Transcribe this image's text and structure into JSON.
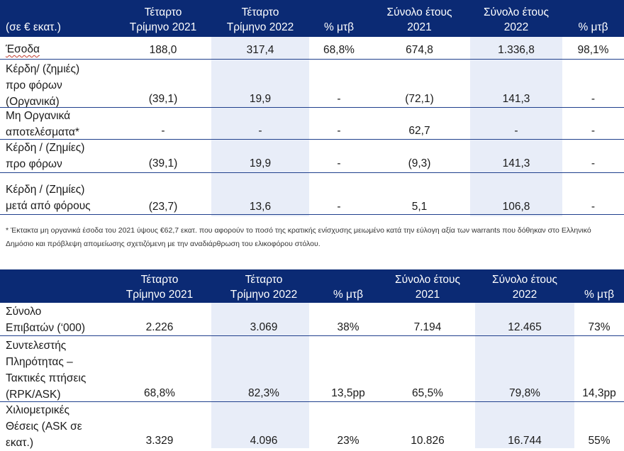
{
  "table1": {
    "headers": {
      "unit": "(σε € εκατ.)",
      "q4_2021": "Τέταρτο\nΤρίμηνο 2021",
      "q4_2022": "Τέταρτο\nΤρίμηνο 2022",
      "yoy": "% μτβ",
      "fy_2021": "Σύνολο έτους\n2021",
      "fy_2022": "Σύνολο έτους\n2022",
      "yoy2": "% μτβ"
    },
    "rows": [
      {
        "label": "Έσοδα",
        "q4_2021": "188,0",
        "q4_2022": "317,4",
        "yoy": "68,8%",
        "fy_2021": "674,8",
        "fy_2022": "1.336,8",
        "yoy2": "98,1%"
      },
      {
        "label": "Κέρδη/ (ζημιές)\nπρο φόρων\n(Οργανικά)",
        "q4_2021": "(39,1)",
        "q4_2022": "19,9",
        "yoy": "-",
        "fy_2021": "(72,1)",
        "fy_2022": "141,3",
        "yoy2": "-"
      },
      {
        "label": "Μη Οργανικά\nαποτελέσματα*",
        "q4_2021": "-",
        "q4_2022": "-",
        "yoy": "-",
        "fy_2021": "62,7",
        "fy_2022": "-",
        "yoy2": "-"
      },
      {
        "label": "Κέρδη / (Ζημίες)\nπρο φόρων",
        "q4_2021": "(39,1)",
        "q4_2022": "19,9",
        "yoy": "-",
        "fy_2021": "(9,3)",
        "fy_2022": "141,3",
        "yoy2": "-"
      },
      {
        "label": "Κέρδη / (Ζημίες)\nμετά από φόρους",
        "q4_2021": "(23,7)",
        "q4_2022": "13,6",
        "yoy": "-",
        "fy_2021": "5,1",
        "fy_2022": "106,8",
        "yoy2": "-"
      }
    ],
    "footnote": "* Έκτακτα μη οργανικά έσοδα του 2021 ύψους €62,7 εκατ. που αφορούν το ποσό της κρατικής ενίσχυσης μειωμένο κατά την εύλογη αξία των warrants που δόθηκαν στο Ελληνικό Δημόσιο και πρόβλεψη απομείωσης σχετιζόμενη με την αναδιάρθρωση του ελικοφόρου στόλου."
  },
  "table2": {
    "headers": {
      "unit": "",
      "q4_2021": "Τέταρτο\nΤρίμηνο 2021",
      "q4_2022": "Τέταρτο\nΤρίμηνο 2022",
      "yoy": "% μτβ",
      "fy_2021": "Σύνολο έτους\n2021",
      "fy_2022": "Σύνολο έτους\n2022",
      "yoy2": "% μτβ"
    },
    "rows": [
      {
        "label": "Σύνολο\nΕπιβατών (‘000)",
        "q4_2021": "2.226",
        "q4_2022": "3.069",
        "yoy": "38%",
        "fy_2021": "7.194",
        "fy_2022": "12.465",
        "yoy2": "73%"
      },
      {
        "label": "Συντελεστής\nΠληρότητας –\nΤακτικές πτήσεις\n(RPK/ASK)",
        "q4_2021": "68,8%",
        "q4_2022": "82,3%",
        "yoy": "13,5pp",
        "fy_2021": "65,5%",
        "fy_2022": "79,8%",
        "yoy2": "14,3pp"
      },
      {
        "label": "Χιλιομετρικές\nΘέσεις (ASK σε\nεκατ.)",
        "q4_2021": "3.329",
        "q4_2022": "4.096",
        "yoy": "23%",
        "fy_2021": "10.826",
        "fy_2022": "16.744",
        "yoy2": "55%"
      }
    ]
  }
}
